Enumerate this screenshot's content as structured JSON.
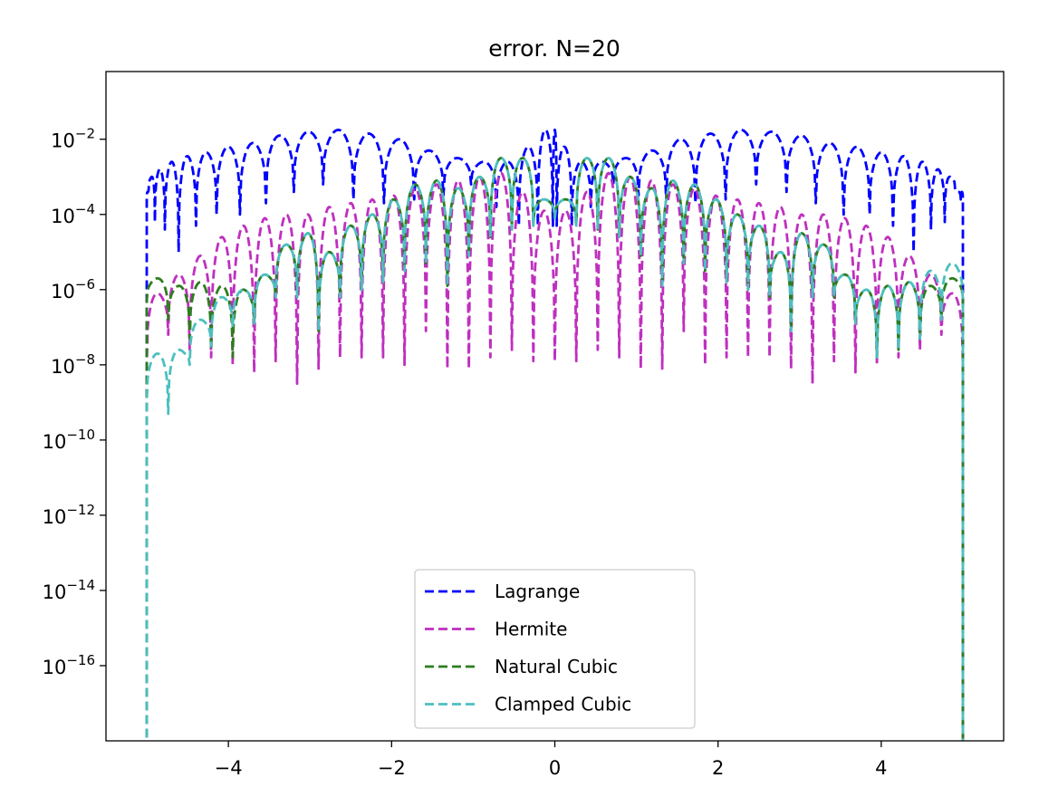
{
  "chart_data": {
    "type": "line",
    "title": "error. N=20",
    "xlabel": "",
    "ylabel": "",
    "yscale": "log",
    "xlim": [
      -5.5,
      5.5
    ],
    "ylim_exponent": [
      -18,
      -0.2
    ],
    "x_ticks": [
      -4,
      -2,
      0,
      2,
      4
    ],
    "x_tick_labels": [
      "−4",
      "−2",
      "0",
      "2",
      "4"
    ],
    "y_tick_exponents": [
      -2,
      -4,
      -6,
      -8,
      -10,
      -12,
      -14,
      -16
    ],
    "y_tick_labels": [
      {
        "base": "10",
        "exp": "−2"
      },
      {
        "base": "10",
        "exp": "−4"
      },
      {
        "base": "10",
        "exp": "−6"
      },
      {
        "base": "10",
        "exp": "−8"
      },
      {
        "base": "10",
        "exp": "−10"
      },
      {
        "base": "10",
        "exp": "−12"
      },
      {
        "base": "10",
        "exp": "−14"
      },
      {
        "base": "10",
        "exp": "−16"
      }
    ],
    "grid": false,
    "legend_position": "bottom-center",
    "series": [
      {
        "name": "Lagrange",
        "color": "#0000ff",
        "dash": "dashed",
        "nodes": [
          -5,
          -4.975,
          -4.901,
          -4.778,
          -4.61,
          -4.397,
          -4.145,
          -3.858,
          -3.54,
          -3.198,
          -2.839,
          -2.468,
          -2.093,
          -1.723,
          -1.365,
          -1.026,
          -0.716,
          -0.441,
          -0.208,
          -0.023,
          0.023,
          0.208,
          0.441,
          0.716,
          1.026,
          1.365,
          1.723,
          2.093,
          2.468,
          2.839,
          3.198,
          3.54,
          3.858,
          4.145,
          4.397,
          4.61,
          4.778,
          4.901,
          4.975,
          5
        ],
        "peak_exponents": [
          -3.4,
          -3.0,
          -2.8,
          -2.6,
          -2.45,
          -2.35,
          -2.2,
          -2.1,
          -1.9,
          -1.8,
          -1.75,
          -1.85,
          -2.0,
          -2.3,
          -2.5,
          -2.6,
          -2.6,
          -2.2,
          -1.75,
          -1.75,
          -2.2,
          -2.6,
          -2.6,
          -2.5,
          -2.3,
          -2.0,
          -1.85,
          -1.75,
          -1.8,
          -1.9,
          -2.1,
          -2.2,
          -2.35,
          -2.45,
          -2.6,
          -2.8,
          -3.0,
          -3.4,
          -3.4
        ],
        "dip_exponents": [
          -3.6,
          -3.2,
          -4.2,
          -4.4,
          -5.0,
          -4.3,
          -4.0,
          -4.0,
          -3.7,
          -3.4,
          -3.2,
          -3.6,
          -3.7,
          -3.6,
          -3.5,
          -3.2,
          -3.8,
          -4.3,
          -4.3,
          -4.3,
          -4.3,
          -4.3,
          -3.8,
          -3.2,
          -3.5,
          -3.6,
          -3.7,
          -3.6,
          -3.2,
          -3.4,
          -3.7,
          -4.0,
          -4.0,
          -4.3,
          -5.0,
          -4.4,
          -4.2,
          -3.2,
          -3.6,
          -3.6
        ]
      },
      {
        "name": "Hermite",
        "color": "#bf2fbf",
        "dash": "dashed",
        "nodes": [
          -5,
          -4.737,
          -4.474,
          -4.211,
          -3.947,
          -3.684,
          -3.421,
          -3.158,
          -2.895,
          -2.632,
          -2.368,
          -2.105,
          -1.842,
          -1.579,
          -1.316,
          -1.053,
          -0.789,
          -0.526,
          -0.263,
          0,
          0.263,
          0.526,
          0.789,
          1.053,
          1.316,
          1.579,
          1.842,
          2.105,
          2.368,
          2.632,
          2.895,
          3.158,
          3.421,
          3.684,
          3.947,
          4.211,
          4.474,
          4.737,
          5
        ],
        "peak_exponents": [
          -6.1,
          -5.6,
          -5.1,
          -4.6,
          -4.3,
          -4.1,
          -4.0,
          -4.0,
          -3.8,
          -3.7,
          -3.6,
          -3.5,
          -3.3,
          -3.2,
          -3.1,
          -3.0,
          -2.9,
          -3.4,
          -3.9,
          -3.9,
          -3.4,
          -2.9,
          -3.0,
          -3.1,
          -3.2,
          -3.3,
          -3.5,
          -3.6,
          -3.7,
          -3.8,
          -4.0,
          -4.0,
          -4.1,
          -4.3,
          -4.6,
          -5.1,
          -5.6,
          -6.1
        ],
        "dip_exponents": [
          -8.0,
          -7.2,
          -7.6,
          -7.8,
          -8.0,
          -8.2,
          -7.9,
          -8.5,
          -8.1,
          -7.8,
          -7.8,
          -7.8,
          -8.0,
          -7.1,
          -8.1,
          -8.1,
          -7.8,
          -7.6,
          -7.9,
          -7.9,
          -7.9,
          -7.6,
          -7.8,
          -8.1,
          -8.1,
          -7.1,
          -8.0,
          -7.8,
          -7.8,
          -7.8,
          -8.1,
          -8.5,
          -7.9,
          -8.2,
          -8.0,
          -7.8,
          -7.6,
          -7.2,
          -8.0
        ]
      },
      {
        "name": "Natural Cubic",
        "color": "#2e7d1f",
        "dash": "dashed",
        "nodes": [
          -5,
          -4.737,
          -4.474,
          -4.211,
          -3.947,
          -3.684,
          -3.421,
          -3.158,
          -2.895,
          -2.632,
          -2.368,
          -2.105,
          -1.842,
          -1.579,
          -1.316,
          -1.053,
          -0.789,
          -0.526,
          -0.263,
          0,
          0.263,
          0.526,
          0.789,
          1.053,
          1.316,
          1.579,
          1.842,
          2.105,
          2.368,
          2.632,
          2.895,
          3.158,
          3.421,
          3.684,
          3.947,
          4.211,
          4.474,
          4.737,
          5
        ],
        "peak_exponents": [
          -5.7,
          -5.9,
          -5.8,
          -5.9,
          -6.0,
          -5.6,
          -4.8,
          -4.5,
          -5.0,
          -4.3,
          -4.0,
          -3.6,
          -3.2,
          -3.1,
          -3.3,
          -3.0,
          -2.5,
          -2.5,
          -3.6,
          -3.6,
          -2.5,
          -2.5,
          -3.0,
          -3.3,
          -3.1,
          -3.2,
          -3.6,
          -4.0,
          -4.3,
          -5.0,
          -4.5,
          -4.8,
          -5.6,
          -6.0,
          -5.9,
          -5.8,
          -5.9,
          -5.7
        ],
        "dip_exponents": [
          -6.3,
          -6.8,
          -7.3,
          -7.6,
          -7.8,
          -6.9,
          -6.2,
          -6.2,
          -7.1,
          -6.2,
          -6.0,
          -5.8,
          -5.5,
          -5.3,
          -5.9,
          -5.1,
          -4.6,
          -4.4,
          -4.3,
          -4.1,
          -4.3,
          -4.4,
          -4.6,
          -5.1,
          -5.9,
          -5.3,
          -5.5,
          -5.8,
          -6.0,
          -6.2,
          -7.1,
          -6.2,
          -6.2,
          -6.9,
          -7.8,
          -7.6,
          -7.3,
          -6.8,
          -6.3
        ]
      },
      {
        "name": "Clamped Cubic",
        "color": "#4dbfbf",
        "dash": "dashed",
        "nodes": [
          -5,
          -4.737,
          -4.474,
          -4.211,
          -3.947,
          -3.684,
          -3.421,
          -3.158,
          -2.895,
          -2.632,
          -2.368,
          -2.105,
          -1.842,
          -1.579,
          -1.316,
          -1.053,
          -0.789,
          -0.526,
          -0.263,
          0,
          0.263,
          0.526,
          0.789,
          1.053,
          1.316,
          1.579,
          1.842,
          2.105,
          2.368,
          2.632,
          2.895,
          3.158,
          3.421,
          3.684,
          3.947,
          4.211,
          4.474,
          4.737,
          5
        ],
        "peak_exponents": [
          -7.7,
          -7.6,
          -6.8,
          -6.2,
          -6.0,
          -5.6,
          -4.8,
          -4.5,
          -5.0,
          -4.3,
          -4.0,
          -3.6,
          -3.2,
          -3.1,
          -3.3,
          -3.0,
          -2.5,
          -2.5,
          -3.6,
          -3.6,
          -2.5,
          -2.5,
          -3.0,
          -3.3,
          -3.1,
          -3.2,
          -3.6,
          -4.0,
          -4.3,
          -5.0,
          -4.5,
          -4.8,
          -5.6,
          -6.0,
          -5.9,
          -5.8,
          -5.5,
          -5.3
        ],
        "dip_exponents": [
          -9.0,
          -9.3,
          -8.0,
          -7.5,
          -7.0,
          -6.9,
          -6.2,
          -6.2,
          -7.1,
          -6.2,
          -6.0,
          -5.8,
          -5.5,
          -5.3,
          -5.9,
          -5.1,
          -4.6,
          -4.4,
          -4.3,
          -4.1,
          -4.3,
          -4.4,
          -4.6,
          -5.1,
          -5.9,
          -5.3,
          -5.5,
          -5.8,
          -6.0,
          -6.2,
          -7.1,
          -6.2,
          -6.2,
          -6.9,
          -7.8,
          -7.6,
          -7.3,
          -6.8,
          -6.3
        ]
      }
    ]
  }
}
